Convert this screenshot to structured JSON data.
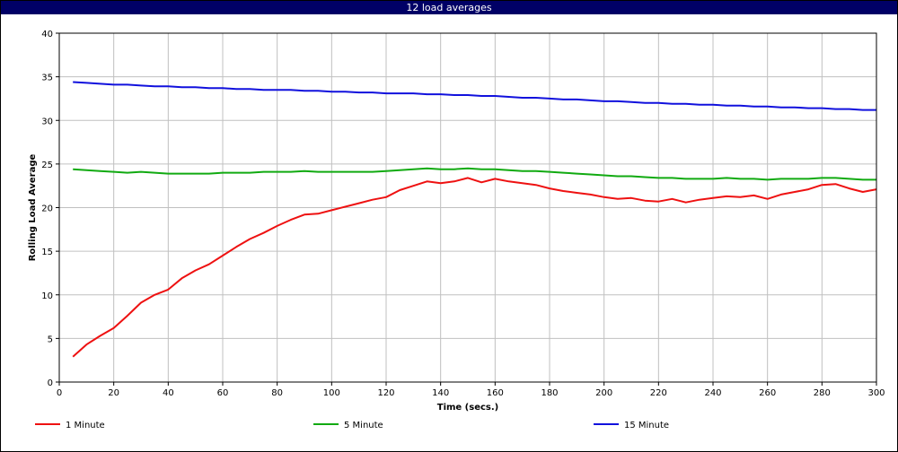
{
  "window": {
    "title": "12 load averages"
  },
  "chart_data": {
    "type": "line",
    "title": "12 load averages",
    "xlabel": "Time (secs.)",
    "ylabel": "Rolling Load Average",
    "xlim": [
      0,
      300
    ],
    "ylim": [
      0,
      40
    ],
    "xticks": [
      0,
      20,
      40,
      60,
      80,
      100,
      120,
      140,
      160,
      180,
      200,
      220,
      240,
      260,
      280,
      300
    ],
    "yticks": [
      0,
      5,
      10,
      15,
      20,
      25,
      30,
      35,
      40
    ],
    "grid": true,
    "legend": "bottom",
    "x": [
      5,
      10,
      15,
      20,
      25,
      30,
      35,
      40,
      45,
      50,
      55,
      60,
      65,
      70,
      75,
      80,
      85,
      90,
      95,
      100,
      105,
      110,
      115,
      120,
      125,
      130,
      135,
      140,
      145,
      150,
      155,
      160,
      165,
      170,
      175,
      180,
      185,
      190,
      195,
      200,
      205,
      210,
      215,
      220,
      225,
      230,
      235,
      240,
      245,
      250,
      255,
      260,
      265,
      270,
      275,
      280,
      285,
      290,
      295,
      300
    ],
    "series": [
      {
        "name": "1 Minute",
        "color": "#ee1111",
        "values": [
          2.9,
          4.3,
          5.3,
          6.2,
          7.6,
          9.1,
          10.0,
          10.6,
          11.9,
          12.8,
          13.5,
          14.5,
          15.5,
          16.4,
          17.1,
          17.9,
          18.6,
          19.2,
          19.3,
          19.7,
          20.1,
          20.5,
          20.9,
          21.2,
          22.0,
          22.5,
          23.0,
          22.8,
          23.0,
          23.4,
          22.9,
          23.3,
          23.0,
          22.8,
          22.6,
          22.2,
          21.9,
          21.7,
          21.5,
          21.2,
          21.0,
          21.1,
          20.8,
          20.7,
          21.0,
          20.6,
          20.9,
          21.1,
          21.3,
          21.2,
          21.4,
          21.0,
          21.5,
          21.8,
          22.1,
          22.6,
          22.7,
          22.2,
          21.8,
          22.1
        ]
      },
      {
        "name": "5 Minute",
        "color": "#11aa11",
        "values": [
          24.4,
          24.3,
          24.2,
          24.1,
          24.0,
          24.1,
          24.0,
          23.9,
          23.9,
          23.9,
          23.9,
          24.0,
          24.0,
          24.0,
          24.1,
          24.1,
          24.1,
          24.2,
          24.1,
          24.1,
          24.1,
          24.1,
          24.1,
          24.2,
          24.3,
          24.4,
          24.5,
          24.4,
          24.4,
          24.5,
          24.4,
          24.4,
          24.3,
          24.2,
          24.2,
          24.1,
          24.0,
          23.9,
          23.8,
          23.7,
          23.6,
          23.6,
          23.5,
          23.4,
          23.4,
          23.3,
          23.3,
          23.3,
          23.4,
          23.3,
          23.3,
          23.2,
          23.3,
          23.3,
          23.3,
          23.4,
          23.4,
          23.3,
          23.2,
          23.2
        ]
      },
      {
        "name": "15 Minute",
        "color": "#1111dd",
        "values": [
          34.4,
          34.3,
          34.2,
          34.1,
          34.1,
          34.0,
          33.9,
          33.9,
          33.8,
          33.8,
          33.7,
          33.7,
          33.6,
          33.6,
          33.5,
          33.5,
          33.5,
          33.4,
          33.4,
          33.3,
          33.3,
          33.2,
          33.2,
          33.1,
          33.1,
          33.1,
          33.0,
          33.0,
          32.9,
          32.9,
          32.8,
          32.8,
          32.7,
          32.6,
          32.6,
          32.5,
          32.4,
          32.4,
          32.3,
          32.2,
          32.2,
          32.1,
          32.0,
          32.0,
          31.9,
          31.9,
          31.8,
          31.8,
          31.7,
          31.7,
          31.6,
          31.6,
          31.5,
          31.5,
          31.4,
          31.4,
          31.3,
          31.3,
          31.2,
          31.2
        ]
      }
    ]
  }
}
